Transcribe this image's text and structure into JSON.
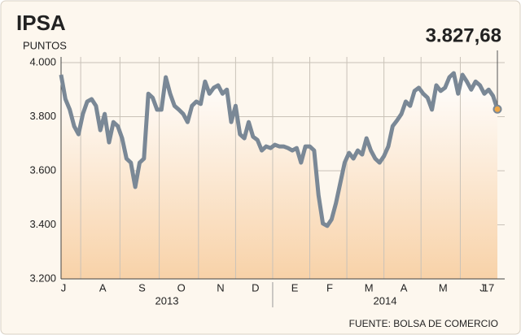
{
  "chart_data": {
    "type": "line",
    "title": "IPSA",
    "subtitle": "PUNTOS",
    "source": "FUENTE: BOLSA DE COMERCIO",
    "year_labels": [
      "2013",
      "2014"
    ],
    "categories": [
      "J",
      null,
      null,
      null,
      null,
      null,
      null,
      null,
      null,
      "A",
      null,
      null,
      null,
      null,
      null,
      null,
      null,
      null,
      "S",
      null,
      null,
      null,
      null,
      null,
      null,
      null,
      null,
      "O",
      null,
      null,
      null,
      null,
      null,
      null,
      null,
      null,
      "N",
      null,
      null,
      null,
      null,
      null,
      null,
      null,
      "D",
      null,
      null,
      null,
      null,
      null,
      null,
      null,
      null,
      "E",
      null,
      null,
      null,
      null,
      null,
      null,
      null,
      "F",
      null,
      null,
      null,
      null,
      null,
      null,
      null,
      null,
      "M",
      null,
      null,
      null,
      null,
      null,
      null,
      null,
      "A",
      null,
      null,
      null,
      null,
      null,
      null,
      null,
      null,
      "M",
      null,
      null,
      null,
      null,
      null,
      null,
      null,
      null,
      "J",
      null,
      null,
      null,
      "17"
    ],
    "series": [
      {
        "name": "IPSA",
        "color": "#7a8896",
        "values": [
          3955,
          3865,
          3826,
          3765,
          3735,
          3810,
          3856,
          3865,
          3840,
          3750,
          3810,
          3705,
          3780,
          3765,
          3720,
          3645,
          3630,
          3540,
          3630,
          3645,
          3885,
          3870,
          3826,
          3826,
          3946,
          3885,
          3840,
          3826,
          3810,
          3780,
          3840,
          3856,
          3847,
          3930,
          3885,
          3907,
          3916,
          3885,
          3900,
          3780,
          3840,
          3735,
          3720,
          3780,
          3726,
          3714,
          3675,
          3690,
          3684,
          3696,
          3690,
          3690,
          3684,
          3675,
          3684,
          3630,
          3690,
          3690,
          3675,
          3510,
          3405,
          3396,
          3420,
          3480,
          3555,
          3630,
          3666,
          3645,
          3675,
          3660,
          3720,
          3675,
          3645,
          3630,
          3654,
          3690,
          3765,
          3786,
          3810,
          3856,
          3840,
          3895,
          3907,
          3885,
          3870,
          3826,
          3916,
          3895,
          3907,
          3946,
          3961,
          3885,
          3955,
          3930,
          3900,
          3930,
          3916,
          3885,
          3900,
          3877,
          3827.68
        ],
        "value_labels": [
          null,
          null,
          null,
          null,
          null,
          null,
          null,
          null,
          null,
          null,
          null,
          null,
          null,
          null,
          null,
          null,
          null,
          null,
          null,
          null,
          null,
          null,
          null,
          null,
          null,
          null,
          null,
          null,
          null,
          null,
          null,
          null,
          null,
          null,
          null,
          null,
          null,
          null,
          null,
          null,
          null,
          null,
          null,
          null,
          null,
          null,
          null,
          null,
          null,
          null,
          null,
          null,
          null,
          null,
          null,
          null,
          null,
          null,
          null,
          null,
          null,
          null,
          null,
          null,
          null,
          null,
          null,
          null,
          null,
          null,
          null,
          null,
          null,
          null,
          null,
          null,
          null,
          null,
          null,
          null,
          null,
          null,
          null,
          null,
          null,
          null,
          null,
          null,
          null,
          null,
          null,
          null,
          null,
          null,
          null,
          null,
          null,
          null,
          null,
          null,
          "3.827,68"
        ]
      }
    ],
    "ylim": [
      3200,
      4000
    ],
    "yticks": [
      {
        "value": 3200,
        "label": "3.200"
      },
      {
        "value": 3400,
        "label": "3.400"
      },
      {
        "value": 3600,
        "label": "3.600"
      },
      {
        "value": 3800,
        "label": "3.800"
      },
      {
        "value": 4000,
        "label": "4.000"
      }
    ],
    "grid": true,
    "label_color": "#e07a1f"
  }
}
